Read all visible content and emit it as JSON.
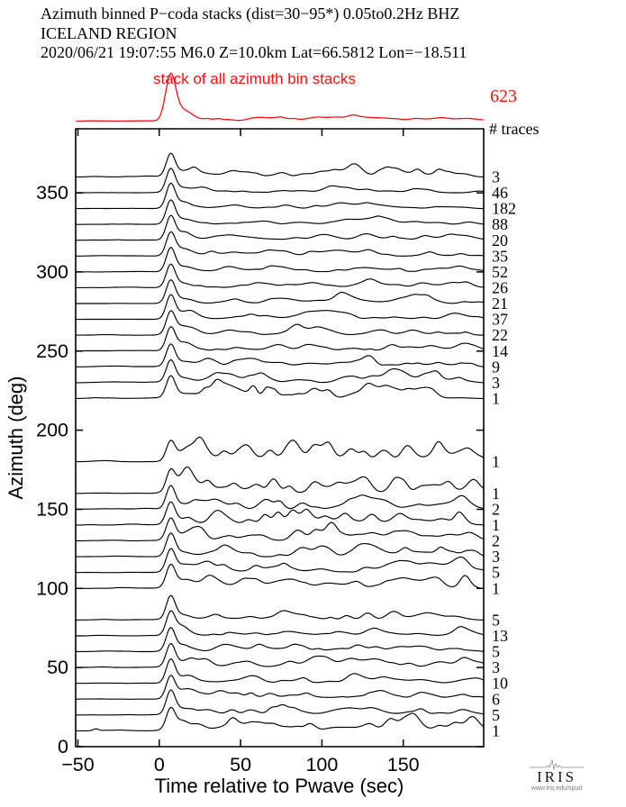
{
  "header": {
    "line1": "Azimuth binned P−coda stacks (dist=30−95*)  0.05to0.2Hz  BHZ",
    "line2": "ICELAND REGION",
    "line3": "2020/06/21  19:07:55  M6.0  Z=10.0km Lat=66.5812 Lon=−18.511"
  },
  "stack": {
    "label": "stack of all azimuth bin stacks",
    "total": "623"
  },
  "traces_heading": "# traces",
  "logo": {
    "name": "IRIS",
    "url_text": "www.iris.edu/spud"
  },
  "colors": {
    "accent_red": "#f71111",
    "trace_black": "#000000",
    "logo_gray": "#888888"
  },
  "chart_data": {
    "type": "line",
    "title": "Azimuth binned P-coda stacks, Iceland region M6.0",
    "xlabel": "Time relative to Pwave (sec)",
    "ylabel": "Azimuth (deg)",
    "xlim": [
      -51.4,
      199.4
    ],
    "ylim": [
      0,
      390
    ],
    "x_ticks": [
      -50,
      0,
      50,
      100,
      150
    ],
    "y_ticks": [
      0,
      50,
      100,
      150,
      200,
      250,
      300,
      350
    ],
    "grid": false,
    "p_peak_time_sec": 7,
    "stack_trace": {
      "label": "stack of all azimuth bin stacks",
      "n_traces": 623,
      "amp": 27.5,
      "sigma": 3.1,
      "noise": 1.0,
      "features": [
        [
          60,
          0.7,
          8
        ],
        [
          110,
          1.6,
          16
        ],
        [
          130,
          1.5,
          10
        ],
        [
          176,
          1.1,
          8
        ]
      ]
    },
    "traces": [
      {
        "azimuth": 360,
        "n_traces": 3,
        "amp": 13.5,
        "noise": 2.4,
        "features": [
          [
            122,
            2.5,
            4
          ],
          [
            145,
            3.2,
            3.5
          ],
          [
            188,
            1.5,
            4
          ]
        ]
      },
      {
        "azimuth": 350,
        "n_traces": 46,
        "amp": 14,
        "noise": 1.1,
        "features": [
          [
            120,
            1.2,
            8
          ]
        ]
      },
      {
        "azimuth": 340,
        "n_traces": 182,
        "amp": 14.5,
        "noise": 0.9,
        "features": [
          [
            112,
            1.5,
            6
          ],
          [
            128,
            2.2,
            9
          ]
        ]
      },
      {
        "azimuth": 330,
        "n_traces": 88,
        "amp": 14,
        "noise": 1.0,
        "features": [
          [
            128,
            3.0,
            8
          ],
          [
            140,
            1.8,
            6
          ]
        ]
      },
      {
        "azimuth": 320,
        "n_traces": 20,
        "amp": 14,
        "noise": 1.5,
        "features": [
          [
            103,
            1.5,
            6
          ],
          [
            126,
            2.8,
            5
          ]
        ]
      },
      {
        "azimuth": 310,
        "n_traces": 35,
        "amp": 13.5,
        "noise": 1.3,
        "features": [
          [
            113,
            1.8,
            7
          ],
          [
            128,
            1.5,
            5
          ]
        ]
      },
      {
        "azimuth": 300,
        "n_traces": 52,
        "amp": 14,
        "noise": 1.2,
        "features": [
          [
            122,
            1.6,
            6
          ]
        ]
      },
      {
        "azimuth": 290,
        "n_traces": 26,
        "amp": 13.5,
        "noise": 1.4,
        "features": [
          [
            95,
            1.5,
            7
          ],
          [
            130,
            1.3,
            5
          ]
        ]
      },
      {
        "azimuth": 280,
        "n_traces": 21,
        "amp": 13.5,
        "noise": 1.4,
        "features": [
          [
            75,
            1.5,
            5
          ],
          [
            110,
            1.4,
            6
          ]
        ]
      },
      {
        "azimuth": 270,
        "n_traces": 37,
        "amp": 14,
        "noise": 1.3,
        "features": [
          [
            95,
            3.2,
            10
          ],
          [
            110,
            2.2,
            7
          ]
        ]
      },
      {
        "azimuth": 260,
        "n_traces": 22,
        "amp": 13.5,
        "noise": 1.5,
        "features": [
          [
            90,
            1.8,
            8
          ],
          [
            135,
            1.4,
            5
          ]
        ]
      },
      {
        "azimuth": 250,
        "n_traces": 14,
        "amp": 13.5,
        "noise": 1.7,
        "features": [
          [
            70,
            1.8,
            5
          ],
          [
            120,
            1.6,
            5
          ]
        ]
      },
      {
        "azimuth": 240,
        "n_traces": 9,
        "amp": 13,
        "noise": 2.0,
        "features": [
          [
            60,
            1.8,
            4
          ],
          [
            128,
            3.0,
            4
          ]
        ]
      },
      {
        "azimuth": 230,
        "n_traces": 3,
        "amp": 13,
        "noise": 2.5,
        "features": [
          [
            35,
            3.5,
            3
          ],
          [
            62,
            3.0,
            3
          ],
          [
            130,
            3.2,
            4
          ],
          [
            150,
            2.2,
            4
          ]
        ]
      },
      {
        "azimuth": 220,
        "n_traces": 1,
        "amp": 13,
        "noise": 3.0,
        "features": [
          [
            35,
            4.5,
            2.5
          ],
          [
            58,
            6.0,
            2.2
          ],
          [
            66,
            6.0,
            2.2
          ],
          [
            95,
            3.5,
            3
          ],
          [
            128,
            4.5,
            3
          ],
          [
            140,
            3.5,
            3
          ],
          [
            168,
            2.5,
            3
          ]
        ]
      },
      {
        "azimuth": 180,
        "n_traces": 1,
        "amp": 12,
        "noise": 3.2,
        "features": [
          [
            25,
            5,
            2.5
          ],
          [
            40,
            4,
            2.5
          ],
          [
            55,
            3.5,
            3
          ],
          [
            68,
            4,
            2.5
          ],
          [
            78,
            4,
            2.5
          ],
          [
            95,
            7,
            3
          ],
          [
            104,
            7,
            2.8
          ],
          [
            118,
            5,
            3
          ],
          [
            126,
            4.5,
            2.5
          ],
          [
            140,
            3,
            3
          ],
          [
            152,
            4,
            3
          ],
          [
            172,
            4.5,
            3
          ],
          [
            190,
            4,
            3
          ]
        ]
      },
      {
        "azimuth": 160,
        "n_traces": 1,
        "amp": 13,
        "noise": 3.0,
        "features": [
          [
            30,
            4,
            2.5
          ],
          [
            46,
            3.5,
            2.5
          ],
          [
            60,
            4,
            3
          ],
          [
            70,
            5,
            2.5
          ],
          [
            80,
            4,
            2.5
          ],
          [
            95,
            4.5,
            3
          ],
          [
            110,
            3.5,
            3
          ],
          [
            126,
            3.5,
            3
          ],
          [
            145,
            3.5,
            3
          ],
          [
            160,
            2.5,
            3
          ],
          [
            178,
            3,
            3
          ],
          [
            192,
            2.5,
            3
          ]
        ]
      },
      {
        "azimuth": 150,
        "n_traces": 2,
        "amp": 13.5,
        "noise": 2.5,
        "features": [
          [
            48,
            2.5,
            3
          ],
          [
            65,
            3.5,
            3
          ],
          [
            74,
            4.5,
            2.5
          ],
          [
            88,
            3,
            3
          ],
          [
            120,
            3.5,
            4
          ],
          [
            140,
            2.5,
            4
          ],
          [
            186,
            3,
            3
          ]
        ]
      },
      {
        "azimuth": 140,
        "n_traces": 1,
        "amp": 13,
        "noise": 2.9,
        "features": [
          [
            55,
            3,
            3
          ],
          [
            65,
            5,
            2.5
          ],
          [
            73,
            6.5,
            2.5
          ],
          [
            82,
            5.5,
            2.5
          ],
          [
            92,
            4,
            3
          ],
          [
            102,
            3.5,
            3
          ],
          [
            130,
            3,
            4
          ],
          [
            186,
            4,
            3
          ]
        ]
      },
      {
        "azimuth": 130,
        "n_traces": 2,
        "amp": 13,
        "noise": 2.6,
        "features": [
          [
            85,
            4.5,
            3.5
          ],
          [
            96,
            5.5,
            3
          ],
          [
            106,
            4,
            3
          ],
          [
            130,
            3,
            4
          ],
          [
            155,
            2.5,
            4
          ],
          [
            178,
            2.5,
            4
          ]
        ]
      },
      {
        "azimuth": 120,
        "n_traces": 3,
        "amp": 13.5,
        "noise": 2.3,
        "features": [
          [
            88,
            3.5,
            4
          ],
          [
            100,
            4.5,
            4
          ],
          [
            128,
            3,
            4
          ],
          [
            150,
            2.5,
            4
          ]
        ]
      },
      {
        "azimuth": 110,
        "n_traces": 5,
        "amp": 13.5,
        "noise": 2.0,
        "features": [
          [
            150,
            2.5,
            8
          ],
          [
            170,
            3.5,
            8
          ],
          [
            186,
            7.5,
            4
          ]
        ]
      },
      {
        "azimuth": 100,
        "n_traces": 1,
        "amp": 13,
        "noise": 2.7,
        "features": [
          [
            30,
            2.5,
            3
          ],
          [
            60,
            2.5,
            3
          ],
          [
            90,
            2,
            3
          ],
          [
            122,
            2.5,
            3
          ],
          [
            150,
            2.5,
            4
          ],
          [
            172,
            3,
            3
          ],
          [
            188,
            8,
            3
          ]
        ]
      },
      {
        "azimuth": 80,
        "n_traces": 5,
        "amp": 14,
        "noise": 1.9,
        "features": [
          [
            35,
            2.2,
            3
          ],
          [
            75,
            1.5,
            4
          ],
          [
            128,
            3.2,
            3
          ],
          [
            165,
            1.5,
            4
          ]
        ]
      },
      {
        "azimuth": 70,
        "n_traces": 13,
        "amp": 14,
        "noise": 1.6,
        "features": [
          [
            80,
            1.5,
            5
          ],
          [
            130,
            3.4,
            3.5
          ]
        ]
      },
      {
        "azimuth": 60,
        "n_traces": 5,
        "amp": 13.5,
        "noise": 1.9,
        "features": [
          [
            40,
            1.8,
            4
          ],
          [
            122,
            2,
            4
          ],
          [
            160,
            1.8,
            5
          ]
        ]
      },
      {
        "azimuth": 50,
        "n_traces": 3,
        "amp": 13.5,
        "noise": 2.1,
        "features": [
          [
            55,
            1.8,
            4
          ],
          [
            100,
            1.5,
            5
          ],
          [
            175,
            2.2,
            5
          ]
        ]
      },
      {
        "azimuth": 40,
        "n_traces": 10,
        "amp": 14,
        "noise": 1.7,
        "features": [
          [
            60,
            1.5,
            4
          ],
          [
            137,
            2.2,
            4
          ]
        ]
      },
      {
        "azimuth": 30,
        "n_traces": 6,
        "amp": 13.5,
        "noise": 1.8,
        "features": [
          [
            48,
            2.4,
            3
          ],
          [
            90,
            1.5,
            4
          ],
          [
            140,
            1.6,
            4
          ]
        ]
      },
      {
        "azimuth": 20,
        "n_traces": 5,
        "amp": 14,
        "noise": 1.9,
        "features": [
          [
            45,
            2.8,
            3
          ],
          [
            70,
            2.2,
            3
          ],
          [
            130,
            1.8,
            4
          ],
          [
            185,
            1.8,
            4
          ]
        ]
      },
      {
        "azimuth": 10,
        "n_traces": 1,
        "amp": 13,
        "noise": 2.8,
        "features": [
          [
            -39,
            1.2,
            1.5
          ],
          [
            45,
            4.2,
            2.5
          ],
          [
            62,
            3,
            3
          ],
          [
            92,
            2.5,
            2.5
          ],
          [
            130,
            3,
            3
          ],
          [
            142,
            3.8,
            2.5
          ],
          [
            152,
            2.5,
            3
          ],
          [
            172,
            2.5,
            3
          ],
          [
            182,
            2.8,
            3
          ],
          [
            192,
            3.5,
            3
          ]
        ]
      }
    ]
  }
}
